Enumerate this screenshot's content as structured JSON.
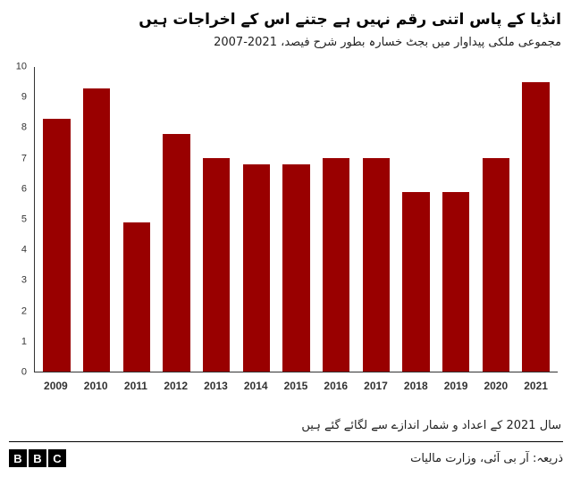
{
  "header": {
    "title": "انڈیا کے پاس اتنی رقم نہیں ہے جتنے اس کے اخراجات ہیں",
    "subtitle": "مجموعی ملکی پیداوار میں بجٹ خسارہ بطور شرح فیصد، 2021-2007"
  },
  "chart_data": {
    "type": "bar",
    "title": "انڈیا کے پاس اتنی رقم نہیں ہے جتنے اس کے اخراجات ہیں",
    "subtitle": "مجموعی ملکی پیداوار میں بجٹ خسارہ بطور شرح فیصد، 2021-2007",
    "categories": [
      "2009",
      "2010",
      "2011",
      "2012",
      "2013",
      "2014",
      "2015",
      "2016",
      "2017",
      "2018",
      "2019",
      "2020",
      "2021"
    ],
    "values": [
      8.3,
      9.3,
      4.9,
      7.8,
      7.0,
      6.8,
      6.8,
      7.0,
      7.0,
      5.9,
      5.9,
      7.0,
      9.5
    ],
    "xlabel": "",
    "ylabel": "",
    "ylim": [
      0,
      10
    ],
    "ytick_step": 1,
    "bar_color": "#990000",
    "grid": false,
    "legend": "none"
  },
  "footer": {
    "footnote": "سال 2021 کے اعداد و شمار اندازے سے لگائے گئے ہیں",
    "source": "ذریعہ: آر بی آئی، وزارت مالیات",
    "logo_letters": [
      "B",
      "B",
      "C"
    ]
  }
}
